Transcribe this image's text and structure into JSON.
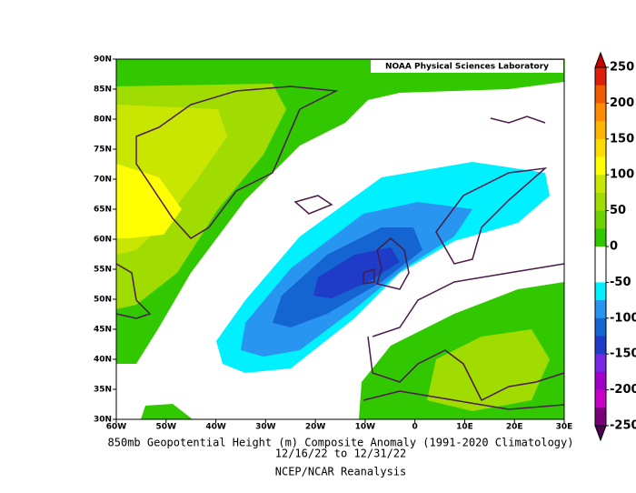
{
  "header": {
    "lab": "NOAA Physical Sciences Laboratory"
  },
  "map": {
    "lat_labels": [
      "90N",
      "85N",
      "80N",
      "75N",
      "70N",
      "65N",
      "60N",
      "55N",
      "50N",
      "45N",
      "40N",
      "35N",
      "30N"
    ],
    "lon_labels": [
      "60W",
      "50W",
      "40W",
      "30W",
      "20W",
      "10W",
      "0",
      "10E",
      "20E",
      "30E"
    ]
  },
  "colorbar": {
    "ticks": [
      250,
      200,
      150,
      100,
      50,
      0,
      -50,
      -100,
      -150,
      -200,
      -250
    ],
    "colors": [
      "#dc1e0a",
      "#f05a00",
      "#ff8c00",
      "#ffb400",
      "#ffdc00",
      "#ffff00",
      "#c8e600",
      "#a0dc00",
      "#6ed200",
      "#32c800",
      "#ffffff",
      "#ffffff",
      "#00f0ff",
      "#2896f0",
      "#1464d2",
      "#1e3cc8",
      "#7828e6",
      "#a000c8",
      "#c800c8",
      "#780078"
    ],
    "over_color": "#c80000",
    "under_color": "#500050"
  },
  "caption": {
    "line1": "850mb Geopotential Height (m) Composite Anomaly (1991-2020 Climatology)",
    "line2": "12/16/22  to 12/31/22",
    "source": "NCEP/NCAR Reanalysis"
  }
}
